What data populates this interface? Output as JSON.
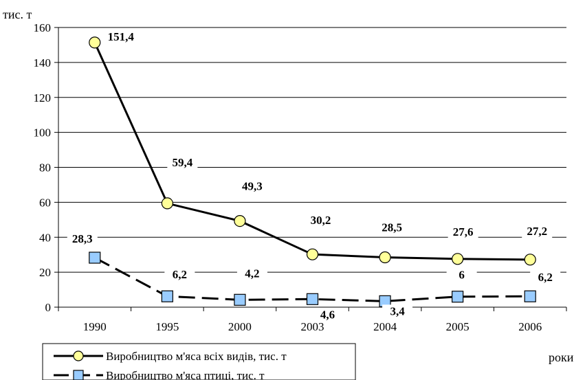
{
  "chart_data": {
    "type": "line",
    "ylabel": "тис. т",
    "xlabel": "роки",
    "ylim": [
      0,
      160
    ],
    "yticks": [
      0,
      20,
      40,
      60,
      80,
      100,
      120,
      140,
      160
    ],
    "categories": [
      "1990",
      "1995",
      "2000",
      "2003",
      "2004",
      "2005",
      "2006"
    ],
    "grid": "horizontal",
    "legend_position": "bottom-left",
    "series": [
      {
        "name": "Виробництво м'яса всіх видів, тис. т",
        "values": [
          151.4,
          59.4,
          49.3,
          30.2,
          28.5,
          27.6,
          27.2
        ],
        "labels": [
          "151,4",
          "59,4",
          "49,3",
          "30,2",
          "28,5",
          "27,6",
          "27,2"
        ],
        "line_style": "solid",
        "marker": "circle",
        "marker_color": "#ffff99"
      },
      {
        "name": "Виробництво м'яса птиці, тис. т",
        "values": [
          28.3,
          6.2,
          4.2,
          4.6,
          3.4,
          6,
          6.2
        ],
        "labels": [
          "28,3",
          "6,2",
          "4,2",
          "4,6",
          "3,4",
          "6",
          "6,2"
        ],
        "line_style": "dashed",
        "marker": "square",
        "marker_color": "#99ccff"
      }
    ]
  }
}
